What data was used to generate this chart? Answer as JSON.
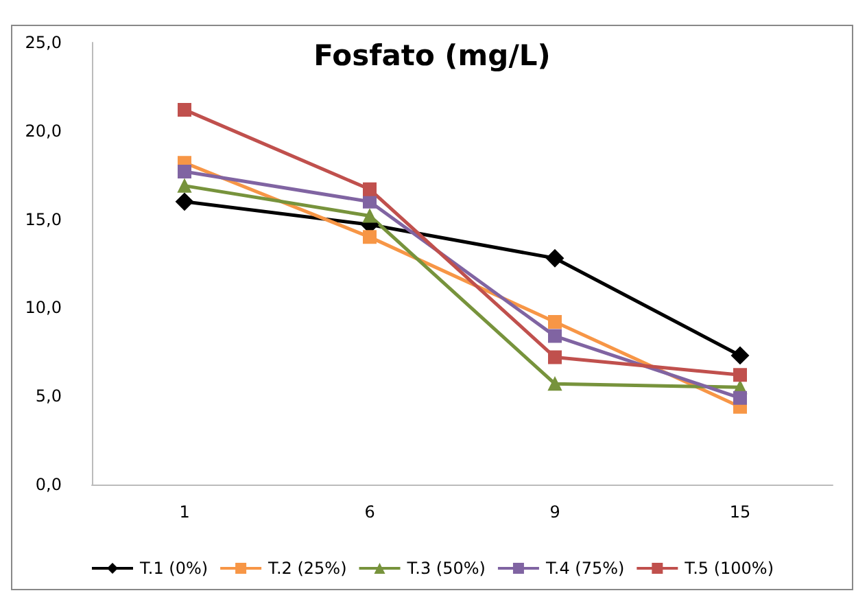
{
  "chart_data": {
    "type": "line",
    "title": "Fosfato (mg/L)",
    "categories": [
      "1",
      "6",
      "9",
      "15"
    ],
    "series": [
      {
        "name": "T.1 (0%)",
        "color": "#000000",
        "marker": "diamond",
        "values": [
          16.0,
          14.7,
          12.8,
          7.3
        ]
      },
      {
        "name": "T.2 (25%)",
        "color": "#f79646",
        "marker": "square",
        "values": [
          18.2,
          14.0,
          9.2,
          4.4
        ]
      },
      {
        "name": "T.3 (50%)",
        "color": "#77933c",
        "marker": "triangle",
        "values": [
          16.9,
          15.2,
          5.7,
          5.5
        ]
      },
      {
        "name": "T.4 (75%)",
        "color": "#8064a2",
        "marker": "square",
        "values": [
          17.7,
          16.0,
          8.4,
          4.9
        ]
      },
      {
        "name": "T.5 (100%)",
        "color": "#c0504d",
        "marker": "square",
        "values": [
          21.2,
          16.7,
          7.2,
          6.2
        ]
      }
    ],
    "ylim": [
      0,
      25
    ],
    "yticks": [
      {
        "value": 0,
        "label": "0,0"
      },
      {
        "value": 5,
        "label": "5,0"
      },
      {
        "value": 10,
        "label": "10,0"
      },
      {
        "value": 15,
        "label": "15,0"
      },
      {
        "value": 20,
        "label": "20,0"
      },
      {
        "value": 25,
        "label": "25,0"
      }
    ],
    "grid": false,
    "legend": "bottom"
  }
}
